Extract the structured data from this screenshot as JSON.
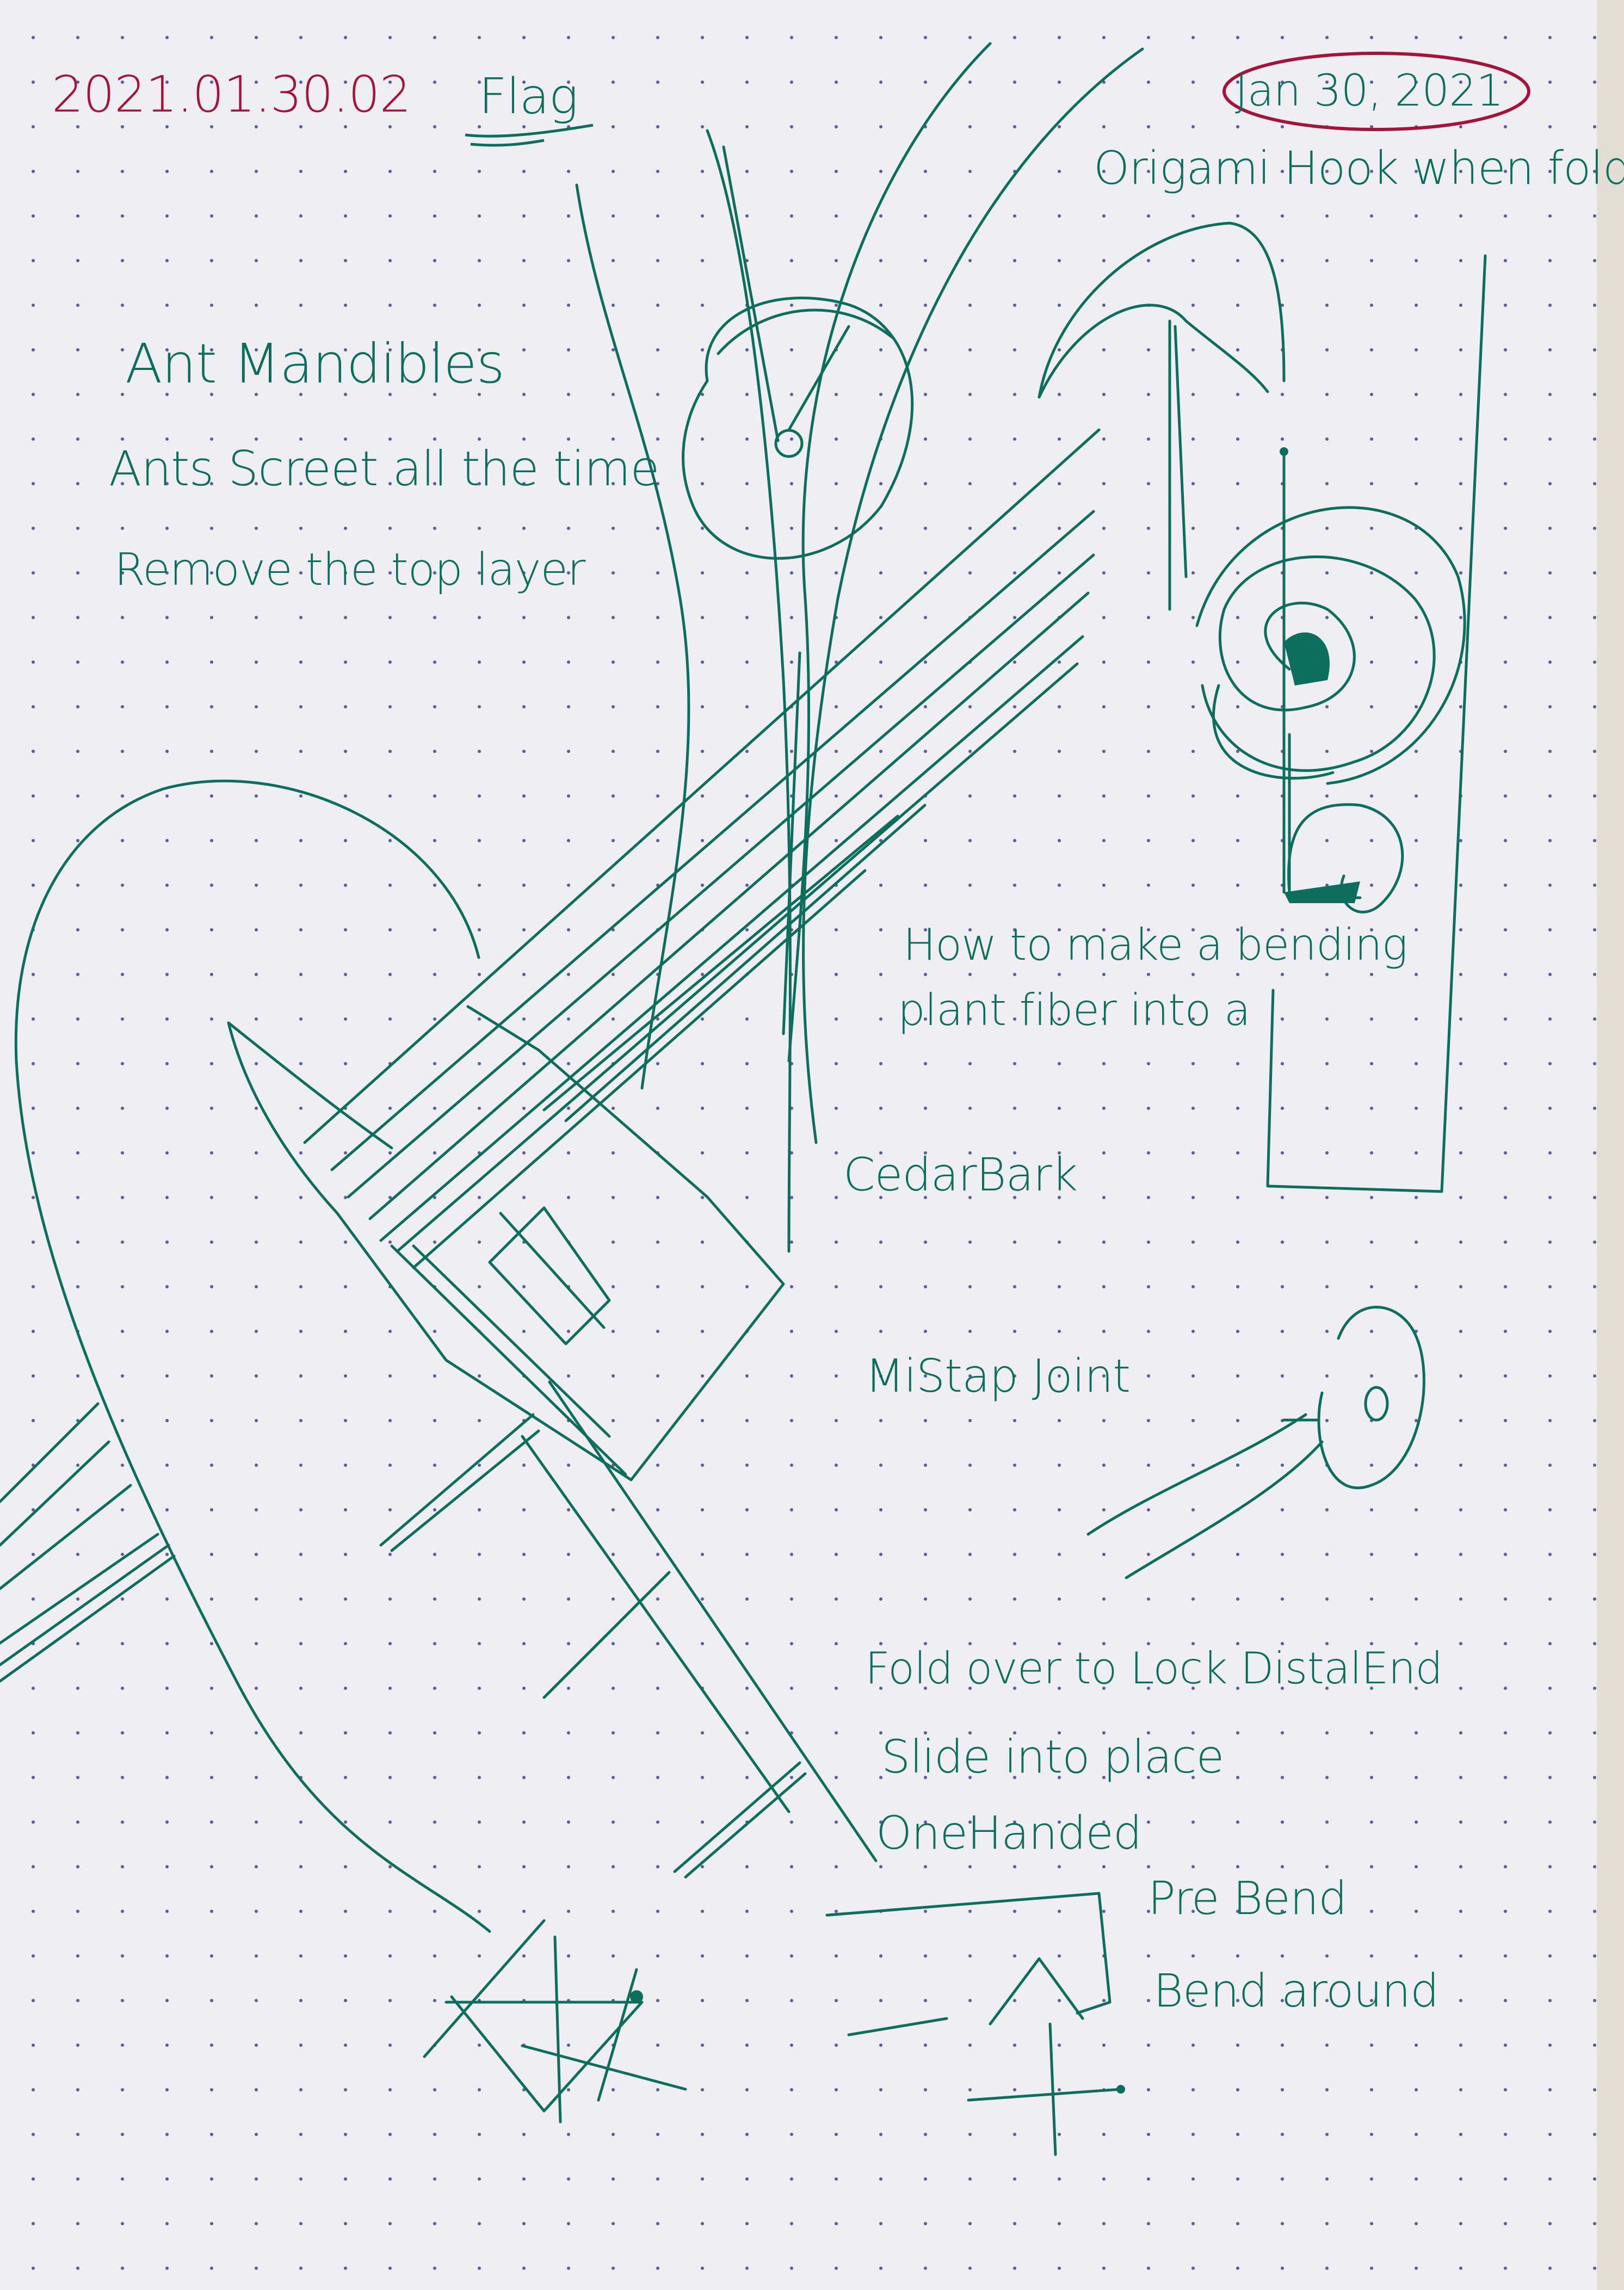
{
  "header": {
    "id_code": "2021.01.30.02",
    "title": "Flag",
    "date": "Jan 30, 2021"
  },
  "notes": {
    "ant_mandibles": "Ant Mandibles",
    "ants_screet": "Ants Screet all the time",
    "remove_layer": "Remove the top layer",
    "origami_hook": "Origami Hook when folded?",
    "how_to_make_1": "How to make a bending",
    "how_to_make_2": "plant fiber into a",
    "cedar_bark": "CedarBark",
    "mistap_joint": "MiStap Joint",
    "fold_over": "Fold over to Lock DistalEnd",
    "slide_into": "Slide into place",
    "one_handed": "OneHanded",
    "pre_bend": "Pre Bend",
    "bend_around": "Bend around"
  },
  "colors": {
    "ink_green": "#0d6e5d",
    "ink_red": "#a3133a",
    "paper": "#efeef2",
    "dots": "#5a5e95"
  }
}
